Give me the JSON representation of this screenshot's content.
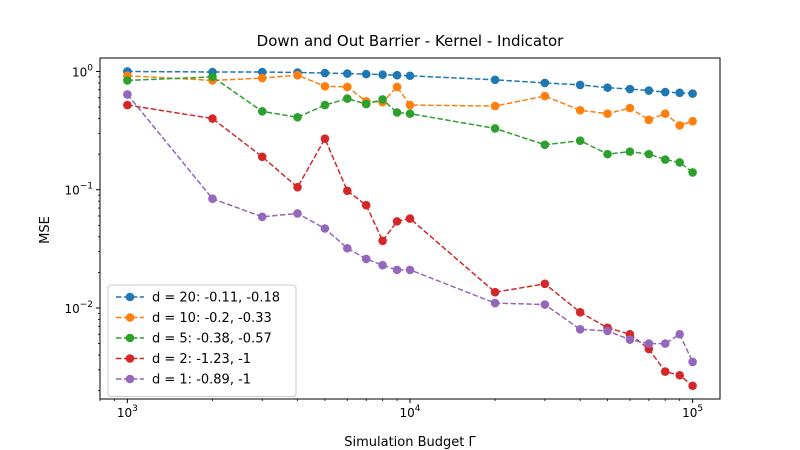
{
  "chart_data": {
    "type": "line",
    "title": "Down and Out Barrier - Kernel - Indicator",
    "xlabel": "Simulation Budget Γ",
    "ylabel": "MSE",
    "xscale": "log",
    "yscale": "log",
    "xlim": [
      800,
      125000
    ],
    "ylim": [
      0.0017,
      1.3
    ],
    "x_ticks": [
      {
        "value": 1000,
        "base": "10",
        "exp": "3"
      },
      {
        "value": 10000,
        "base": "10",
        "exp": "4"
      },
      {
        "value": 100000,
        "base": "10",
        "exp": "5"
      }
    ],
    "y_ticks": [
      {
        "value": 0.01,
        "base": "10",
        "exp": "−2"
      },
      {
        "value": 0.1,
        "base": "10",
        "exp": "−1"
      },
      {
        "value": 1,
        "base": "10",
        "exp": "0"
      }
    ],
    "grid": false,
    "legend_position": "lower-left",
    "line_style": "dashed",
    "marker": "circle",
    "x": [
      1000,
      2000,
      3000,
      4000,
      5000,
      6000,
      7000,
      8000,
      9000,
      10000,
      20000,
      30000,
      40000,
      50000,
      60000,
      70000,
      80000,
      90000,
      100000
    ],
    "series": [
      {
        "name": "d = 20: -0.11, -0.18",
        "color": "#1f77b4",
        "values": [
          1.0,
          0.99,
          0.99,
          0.98,
          0.97,
          0.96,
          0.95,
          0.94,
          0.93,
          0.92,
          0.85,
          0.8,
          0.77,
          0.73,
          0.71,
          0.69,
          0.67,
          0.66,
          0.65
        ]
      },
      {
        "name": "d = 10: -0.2, -0.33",
        "color": "#ff7f0e",
        "values": [
          0.92,
          0.84,
          0.88,
          0.93,
          0.75,
          0.74,
          0.56,
          0.55,
          0.74,
          0.52,
          0.51,
          0.62,
          0.47,
          0.44,
          0.49,
          0.39,
          0.44,
          0.35,
          0.38
        ]
      },
      {
        "name": "d = 5: -0.38, -0.57",
        "color": "#2ca02c",
        "values": [
          0.84,
          0.9,
          0.46,
          0.41,
          0.52,
          0.59,
          0.53,
          0.58,
          0.45,
          0.44,
          0.33,
          0.24,
          0.26,
          0.2,
          0.21,
          0.2,
          0.18,
          0.17,
          0.14
        ]
      },
      {
        "name": "d = 2: -1.23, -1",
        "color": "#d62728",
        "values": [
          0.52,
          0.4,
          0.19,
          0.105,
          0.27,
          0.098,
          0.074,
          0.037,
          0.054,
          0.057,
          0.0136,
          0.016,
          0.0092,
          0.0068,
          0.006,
          0.0045,
          0.0029,
          0.0027,
          0.0022
        ]
      },
      {
        "name": "d = 1: -0.89, -1",
        "color": "#9467bd",
        "values": [
          0.64,
          0.084,
          0.059,
          0.063,
          0.047,
          0.032,
          0.026,
          0.023,
          0.021,
          0.021,
          0.011,
          0.0107,
          0.0066,
          0.0064,
          0.0054,
          0.005,
          0.005,
          0.006,
          0.0035
        ]
      }
    ]
  }
}
